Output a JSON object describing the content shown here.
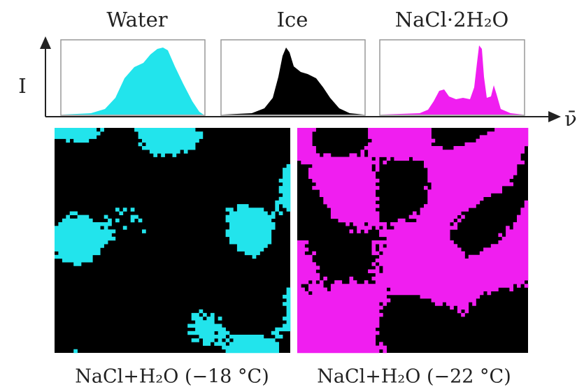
{
  "spectra": {
    "y_axis_label": "I",
    "x_axis_label": "ν̄",
    "panels": [
      {
        "title": "Water"
      },
      {
        "title": "Ice"
      },
      {
        "title": "NaCl·2H₂O"
      }
    ]
  },
  "maps": [
    {
      "label": "NaCl+H₂O (−18 °C)"
    },
    {
      "label": "NaCl+H₂O (−22 °C)"
    }
  ]
}
